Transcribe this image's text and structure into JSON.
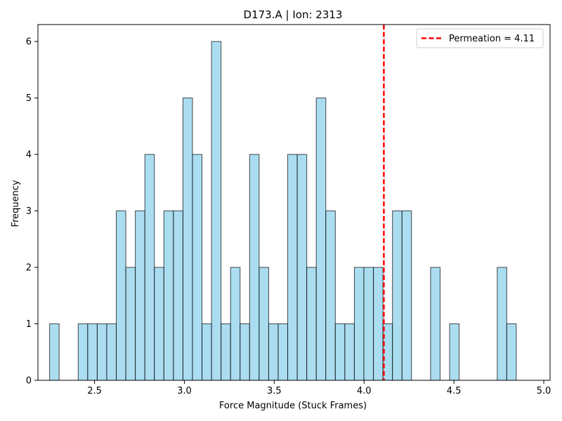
{
  "chart_data": {
    "type": "bar",
    "title": "D173.A | Ion: 2313",
    "xlabel": "Force Magnitude (Stuck Frames)",
    "ylabel": "Frequency",
    "xlim": [
      2.185,
      5.035
    ],
    "ylim": [
      0,
      6.3
    ],
    "xticks": [
      2.5,
      3.0,
      3.5,
      4.0,
      4.5,
      5.0
    ],
    "xtick_labels": [
      "2.5",
      "3.0",
      "3.5",
      "4.0",
      "4.5",
      "5.0"
    ],
    "yticks": [
      0,
      1,
      2,
      3,
      4,
      5,
      6
    ],
    "ytick_labels": [
      "0",
      "1",
      "2",
      "3",
      "4",
      "5",
      "6"
    ],
    "bins": {
      "start": 2.25,
      "width": 0.053,
      "counts": [
        1,
        0,
        0,
        1,
        1,
        1,
        1,
        3,
        2,
        3,
        4,
        2,
        3,
        3,
        5,
        4,
        1,
        6,
        1,
        2,
        1,
        4,
        2,
        1,
        1,
        4,
        4,
        2,
        5,
        3,
        1,
        1,
        2,
        2,
        2,
        1,
        3,
        3,
        0,
        0,
        2,
        0,
        1,
        0,
        0,
        0,
        0,
        2,
        1
      ]
    },
    "bar_color": "#87ceeb",
    "bar_edge_color": "#000000",
    "vline": {
      "x": 4.11,
      "label": "Permeation = 4.11",
      "color": "#ff0000",
      "style": "dashed"
    },
    "legend_position": "top-right",
    "grid": false
  }
}
